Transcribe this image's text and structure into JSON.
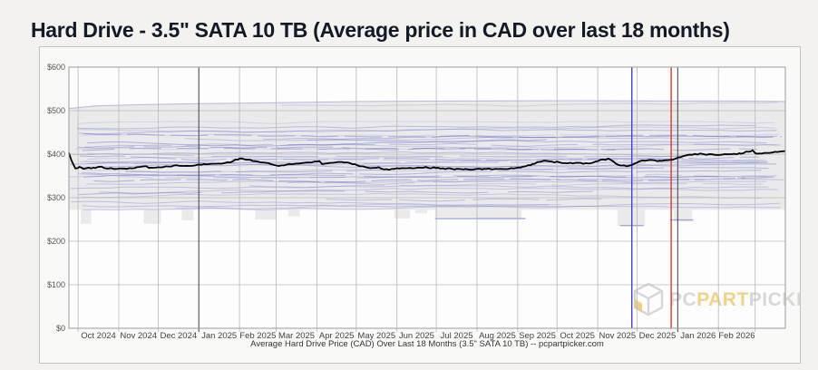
{
  "page": {
    "title": "Hard Drive - 3.5\" SATA 10 TB (Average price in CAD over last 18 months)"
  },
  "chart_data": {
    "type": "line",
    "caption": "Average Hard Drive Price (CAD) Over Last 18 Months (3.5\" SATA 10 TB) -- pcpartpicker.com",
    "x_start": "2024-09-24",
    "x_end": "2026-03-24",
    "x_tick_labels": [
      "Oct 2024",
      "Nov 2024",
      "Dec 2024",
      "Jan 2025",
      "Feb 2025",
      "Mar 2025",
      "Apr 2025",
      "May 2025",
      "Jun 2025",
      "Jul 2025",
      "Aug 2025",
      "Sep 2025",
      "Oct 2025",
      "Nov 2025",
      "Dec 2025",
      "Jan 2026",
      "Feb 2026"
    ],
    "y_tick_labels": [
      "$600",
      "$500",
      "$400",
      "$300",
      "$200",
      "$100",
      "$0"
    ],
    "y_tick_values": [
      600,
      500,
      400,
      300,
      200,
      100,
      0
    ],
    "ylim": [
      0,
      600
    ],
    "grid": true,
    "series": [
      {
        "name": "average_price_cad",
        "color": "#000000",
        "points_days_price": [
          [
            0,
            403
          ],
          [
            2,
            385
          ],
          [
            5,
            367
          ],
          [
            8,
            371
          ],
          [
            11,
            366
          ],
          [
            15,
            369
          ],
          [
            20,
            368
          ],
          [
            25,
            371
          ],
          [
            30,
            367
          ],
          [
            35,
            366
          ],
          [
            40,
            367
          ],
          [
            46,
            368
          ],
          [
            52,
            370
          ],
          [
            57,
            372
          ],
          [
            62,
            369
          ],
          [
            68,
            370
          ],
          [
            74,
            372
          ],
          [
            80,
            374
          ],
          [
            86,
            373
          ],
          [
            92,
            373
          ],
          [
            99,
            376
          ],
          [
            106,
            377
          ],
          [
            112,
            378
          ],
          [
            119,
            380
          ],
          [
            125,
            384
          ],
          [
            130,
            390
          ],
          [
            136,
            387
          ],
          [
            142,
            384
          ],
          [
            148,
            381
          ],
          [
            154,
            377
          ],
          [
            160,
            373
          ],
          [
            166,
            376
          ],
          [
            172,
            378
          ],
          [
            179,
            380
          ],
          [
            185,
            381
          ],
          [
            191,
            384
          ],
          [
            193,
            377
          ],
          [
            199,
            380
          ],
          [
            206,
            382
          ],
          [
            212,
            381
          ],
          [
            218,
            377
          ],
          [
            224,
            372
          ],
          [
            230,
            368
          ],
          [
            236,
            370
          ],
          [
            240,
            365
          ],
          [
            246,
            366
          ],
          [
            252,
            367
          ],
          [
            258,
            368
          ],
          [
            264,
            368
          ],
          [
            270,
            369
          ],
          [
            281,
            369
          ],
          [
            288,
            367
          ],
          [
            295,
            366
          ],
          [
            302,
            366
          ],
          [
            309,
            365
          ],
          [
            316,
            366
          ],
          [
            323,
            365
          ],
          [
            330,
            366
          ],
          [
            337,
            368
          ],
          [
            344,
            369
          ],
          [
            348,
            372
          ],
          [
            353,
            377
          ],
          [
            358,
            382
          ],
          [
            362,
            385
          ],
          [
            368,
            383
          ],
          [
            374,
            381
          ],
          [
            380,
            379
          ],
          [
            386,
            380
          ],
          [
            392,
            378
          ],
          [
            397,
            379
          ],
          [
            403,
            384
          ],
          [
            411,
            390
          ],
          [
            415,
            383
          ],
          [
            419,
            375
          ],
          [
            425,
            372
          ],
          [
            429,
            375
          ],
          [
            435,
            384
          ],
          [
            441,
            386
          ],
          [
            448,
            384
          ],
          [
            454,
            386
          ],
          [
            460,
            387
          ],
          [
            466,
            393
          ],
          [
            473,
            399
          ],
          [
            482,
            401
          ],
          [
            494,
            398
          ],
          [
            503,
            400
          ],
          [
            512,
            401
          ],
          [
            521,
            409
          ],
          [
            524,
            401
          ],
          [
            532,
            403
          ],
          [
            540,
            405
          ],
          [
            546,
            407
          ]
        ]
      }
    ],
    "minmax_band": {
      "color": "rgba(40,40,45,0.09)",
      "top_envelope_days_price": [
        [
          0,
          505
        ],
        [
          20,
          511
        ],
        [
          60,
          514
        ],
        [
          99,
          516
        ],
        [
          150,
          518
        ],
        [
          220,
          521
        ],
        [
          300,
          522
        ],
        [
          380,
          523
        ],
        [
          460,
          522
        ],
        [
          510,
          522
        ],
        [
          546,
          521
        ]
      ],
      "bottom_price": 272,
      "bottom_dips_days": [
        [
          9,
          17,
          240
        ],
        [
          57,
          70,
          240
        ],
        [
          86,
          95,
          248
        ],
        [
          142,
          158,
          250
        ],
        [
          167,
          176,
          257
        ],
        [
          248,
          260,
          252
        ],
        [
          264,
          273,
          264
        ],
        [
          279,
          310,
          255
        ],
        [
          310,
          345,
          252
        ],
        [
          418,
          439,
          235
        ],
        [
          461,
          475,
          245
        ]
      ]
    },
    "individual_price_levels": [
      512,
      468,
      462,
      455,
      450,
      446,
      442,
      438,
      434,
      430,
      426,
      422,
      418,
      414,
      410,
      406,
      402,
      398,
      394,
      390,
      386,
      382,
      378,
      374,
      370,
      366,
      362,
      358,
      354,
      350,
      345,
      340,
      335,
      330,
      325,
      320,
      314,
      308,
      302,
      296,
      290,
      283,
      277,
      273
    ],
    "extra_low_segments": [
      {
        "p": 252,
        "d1": 279,
        "d2": 348
      },
      {
        "p": 236,
        "d1": 420,
        "d2": 438
      },
      {
        "p": 249,
        "d1": 458,
        "d2": 476
      }
    ],
    "markers": [
      {
        "day": 429,
        "color": "#4343c8"
      },
      {
        "day": 459,
        "color": "#d23b34"
      }
    ],
    "colors": {
      "product_line": "#5a5fc8",
      "grid": "#b8b8b8",
      "year_grid": "#4f4f4f",
      "plot_border": "#9c9c9c",
      "plot_bg": "#fdfdfd"
    }
  },
  "watermark": {
    "pc": "PC",
    "part": "PART",
    "picker": "PICKER"
  }
}
